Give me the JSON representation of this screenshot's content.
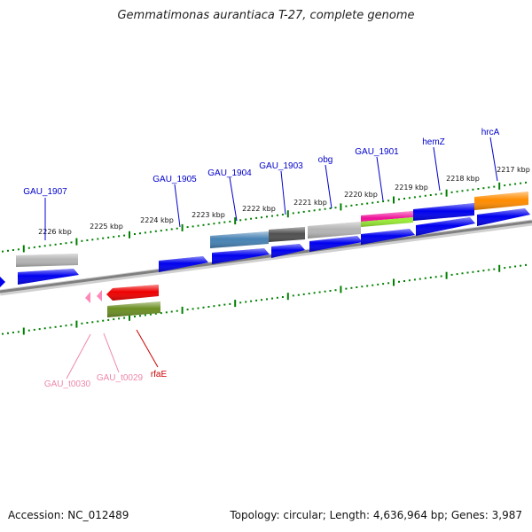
{
  "title": "Gemmatimonas aurantiaca T-27, complete genome",
  "footer": {
    "accession": "Accession: NC_012489",
    "topology": "Topology: circular; Length: 4,636,964 bp; Genes: 3,987"
  },
  "ruler": {
    "ticks": [
      "2226 kbp",
      "2225 kbp",
      "2224 kbp",
      "2223 kbp",
      "2222 kbp",
      "2221 kbp",
      "2220 kbp",
      "2219 kbp",
      "2218 kbp",
      "2217 kbp"
    ]
  },
  "colors": {
    "cds": "#0000ee",
    "grey_feature": "#b4b4b4",
    "steelblue": "#4682b4",
    "darkgrey": "#505050",
    "magenta": "#ee1199",
    "lightgreen": "#99ee33",
    "orange": "#ff8c00",
    "red": "#ee0000",
    "olive": "#6b8e23",
    "trna": "#ff88bb",
    "backbone": "#808080",
    "tick_green": "#008000",
    "label_blue": "#0000cc",
    "label_pink": "#ee88aa",
    "label_red": "#cc0000"
  },
  "gene_labels": {
    "forward": [
      "GAU_1907",
      "GAU_1905",
      "GAU_1904",
      "GAU_1903",
      "obg",
      "GAU_1901",
      "hemZ",
      "hrcA"
    ],
    "reverse": [
      "GAU_t0030",
      "GAU_t0029",
      "rfaE"
    ]
  }
}
